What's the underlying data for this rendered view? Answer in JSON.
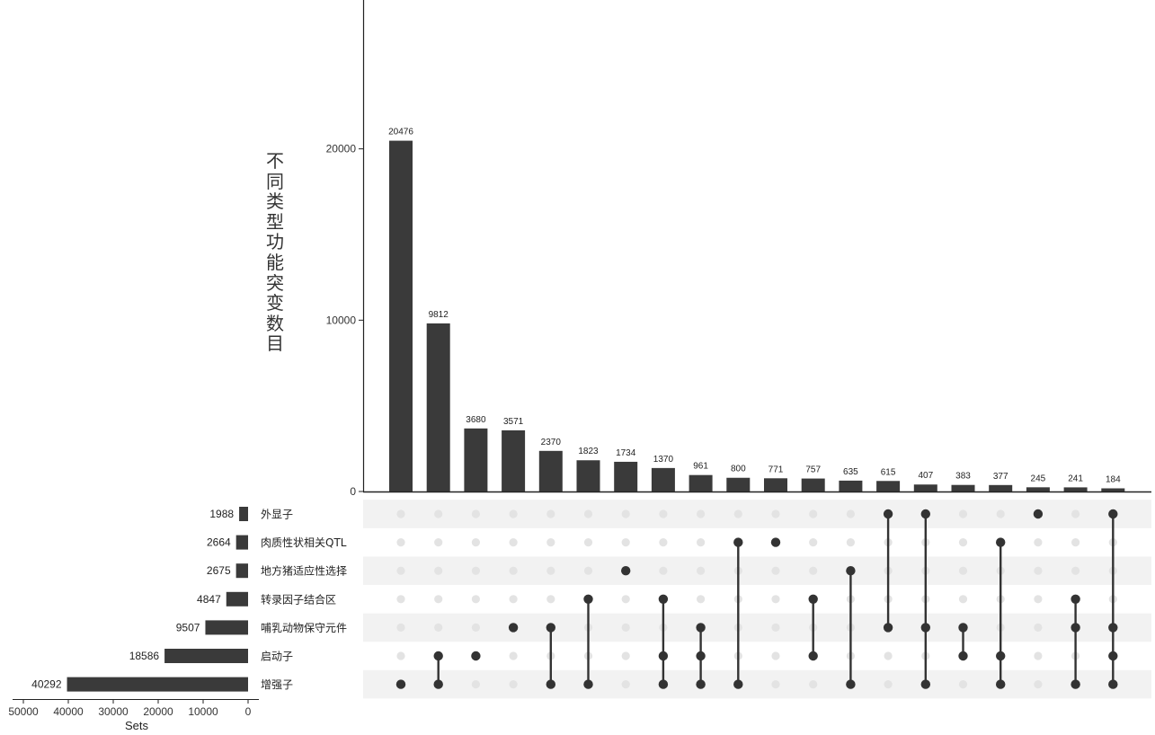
{
  "chart_data": {
    "type": "upset",
    "title": "",
    "ylabel": "不同类型功能突变数目",
    "set_size_label": "Sets",
    "intersection_ylim": [
      0,
      30000
    ],
    "intersection_yticks": [
      0,
      10000,
      20000
    ],
    "set_size_xlim": [
      0,
      52000
    ],
    "set_size_xticks": [
      50000,
      40000,
      30000,
      20000,
      10000,
      0
    ],
    "sets": [
      {
        "name": "外显子",
        "size": 1988
      },
      {
        "name": "肉质性状相关QTL",
        "size": 2664
      },
      {
        "name": "地方猪适应性选择",
        "size": 2675
      },
      {
        "name": "转录因子结合区",
        "size": 4847
      },
      {
        "name": "哺乳动物保守元件",
        "size": 9507
      },
      {
        "name": "启动子",
        "size": 18586
      },
      {
        "name": "增强子",
        "size": 40292
      }
    ],
    "intersections": [
      {
        "value": 20476,
        "sets": [
          "增强子"
        ]
      },
      {
        "value": 9812,
        "sets": [
          "启动子",
          "增强子"
        ]
      },
      {
        "value": 3680,
        "sets": [
          "启动子"
        ]
      },
      {
        "value": 3571,
        "sets": [
          "哺乳动物保守元件"
        ]
      },
      {
        "value": 2370,
        "sets": [
          "哺乳动物保守元件",
          "增强子"
        ]
      },
      {
        "value": 1823,
        "sets": [
          "转录因子结合区",
          "增强子"
        ]
      },
      {
        "value": 1734,
        "sets": [
          "地方猪适应性选择"
        ]
      },
      {
        "value": 1370,
        "sets": [
          "转录因子结合区",
          "启动子",
          "增强子"
        ]
      },
      {
        "value": 961,
        "sets": [
          "哺乳动物保守元件",
          "启动子",
          "增强子"
        ]
      },
      {
        "value": 800,
        "sets": [
          "肉质性状相关QTL",
          "增强子"
        ]
      },
      {
        "value": 771,
        "sets": [
          "肉质性状相关QTL"
        ]
      },
      {
        "value": 757,
        "sets": [
          "转录因子结合区",
          "启动子"
        ]
      },
      {
        "value": 635,
        "sets": [
          "地方猪适应性选择",
          "增强子"
        ]
      },
      {
        "value": 615,
        "sets": [
          "外显子",
          "哺乳动物保守元件"
        ]
      },
      {
        "value": 407,
        "sets": [
          "外显子",
          "哺乳动物保守元件",
          "增强子"
        ]
      },
      {
        "value": 383,
        "sets": [
          "哺乳动物保守元件",
          "启动子"
        ]
      },
      {
        "value": 377,
        "sets": [
          "肉质性状相关QTL",
          "启动子",
          "增强子"
        ]
      },
      {
        "value": 245,
        "sets": [
          "外显子"
        ]
      },
      {
        "value": 241,
        "sets": [
          "转录因子结合区",
          "哺乳动物保守元件",
          "增强子"
        ]
      },
      {
        "value": 184,
        "sets": [
          "外显子",
          "哺乳动物保守元件",
          "启动子",
          "增强子"
        ]
      }
    ],
    "colors": {
      "bar": "#3a3a3a",
      "dot_active": "#333333",
      "dot_inactive": "#e3e3e3",
      "stripe": "#f2f2f2"
    },
    "grid": false
  }
}
